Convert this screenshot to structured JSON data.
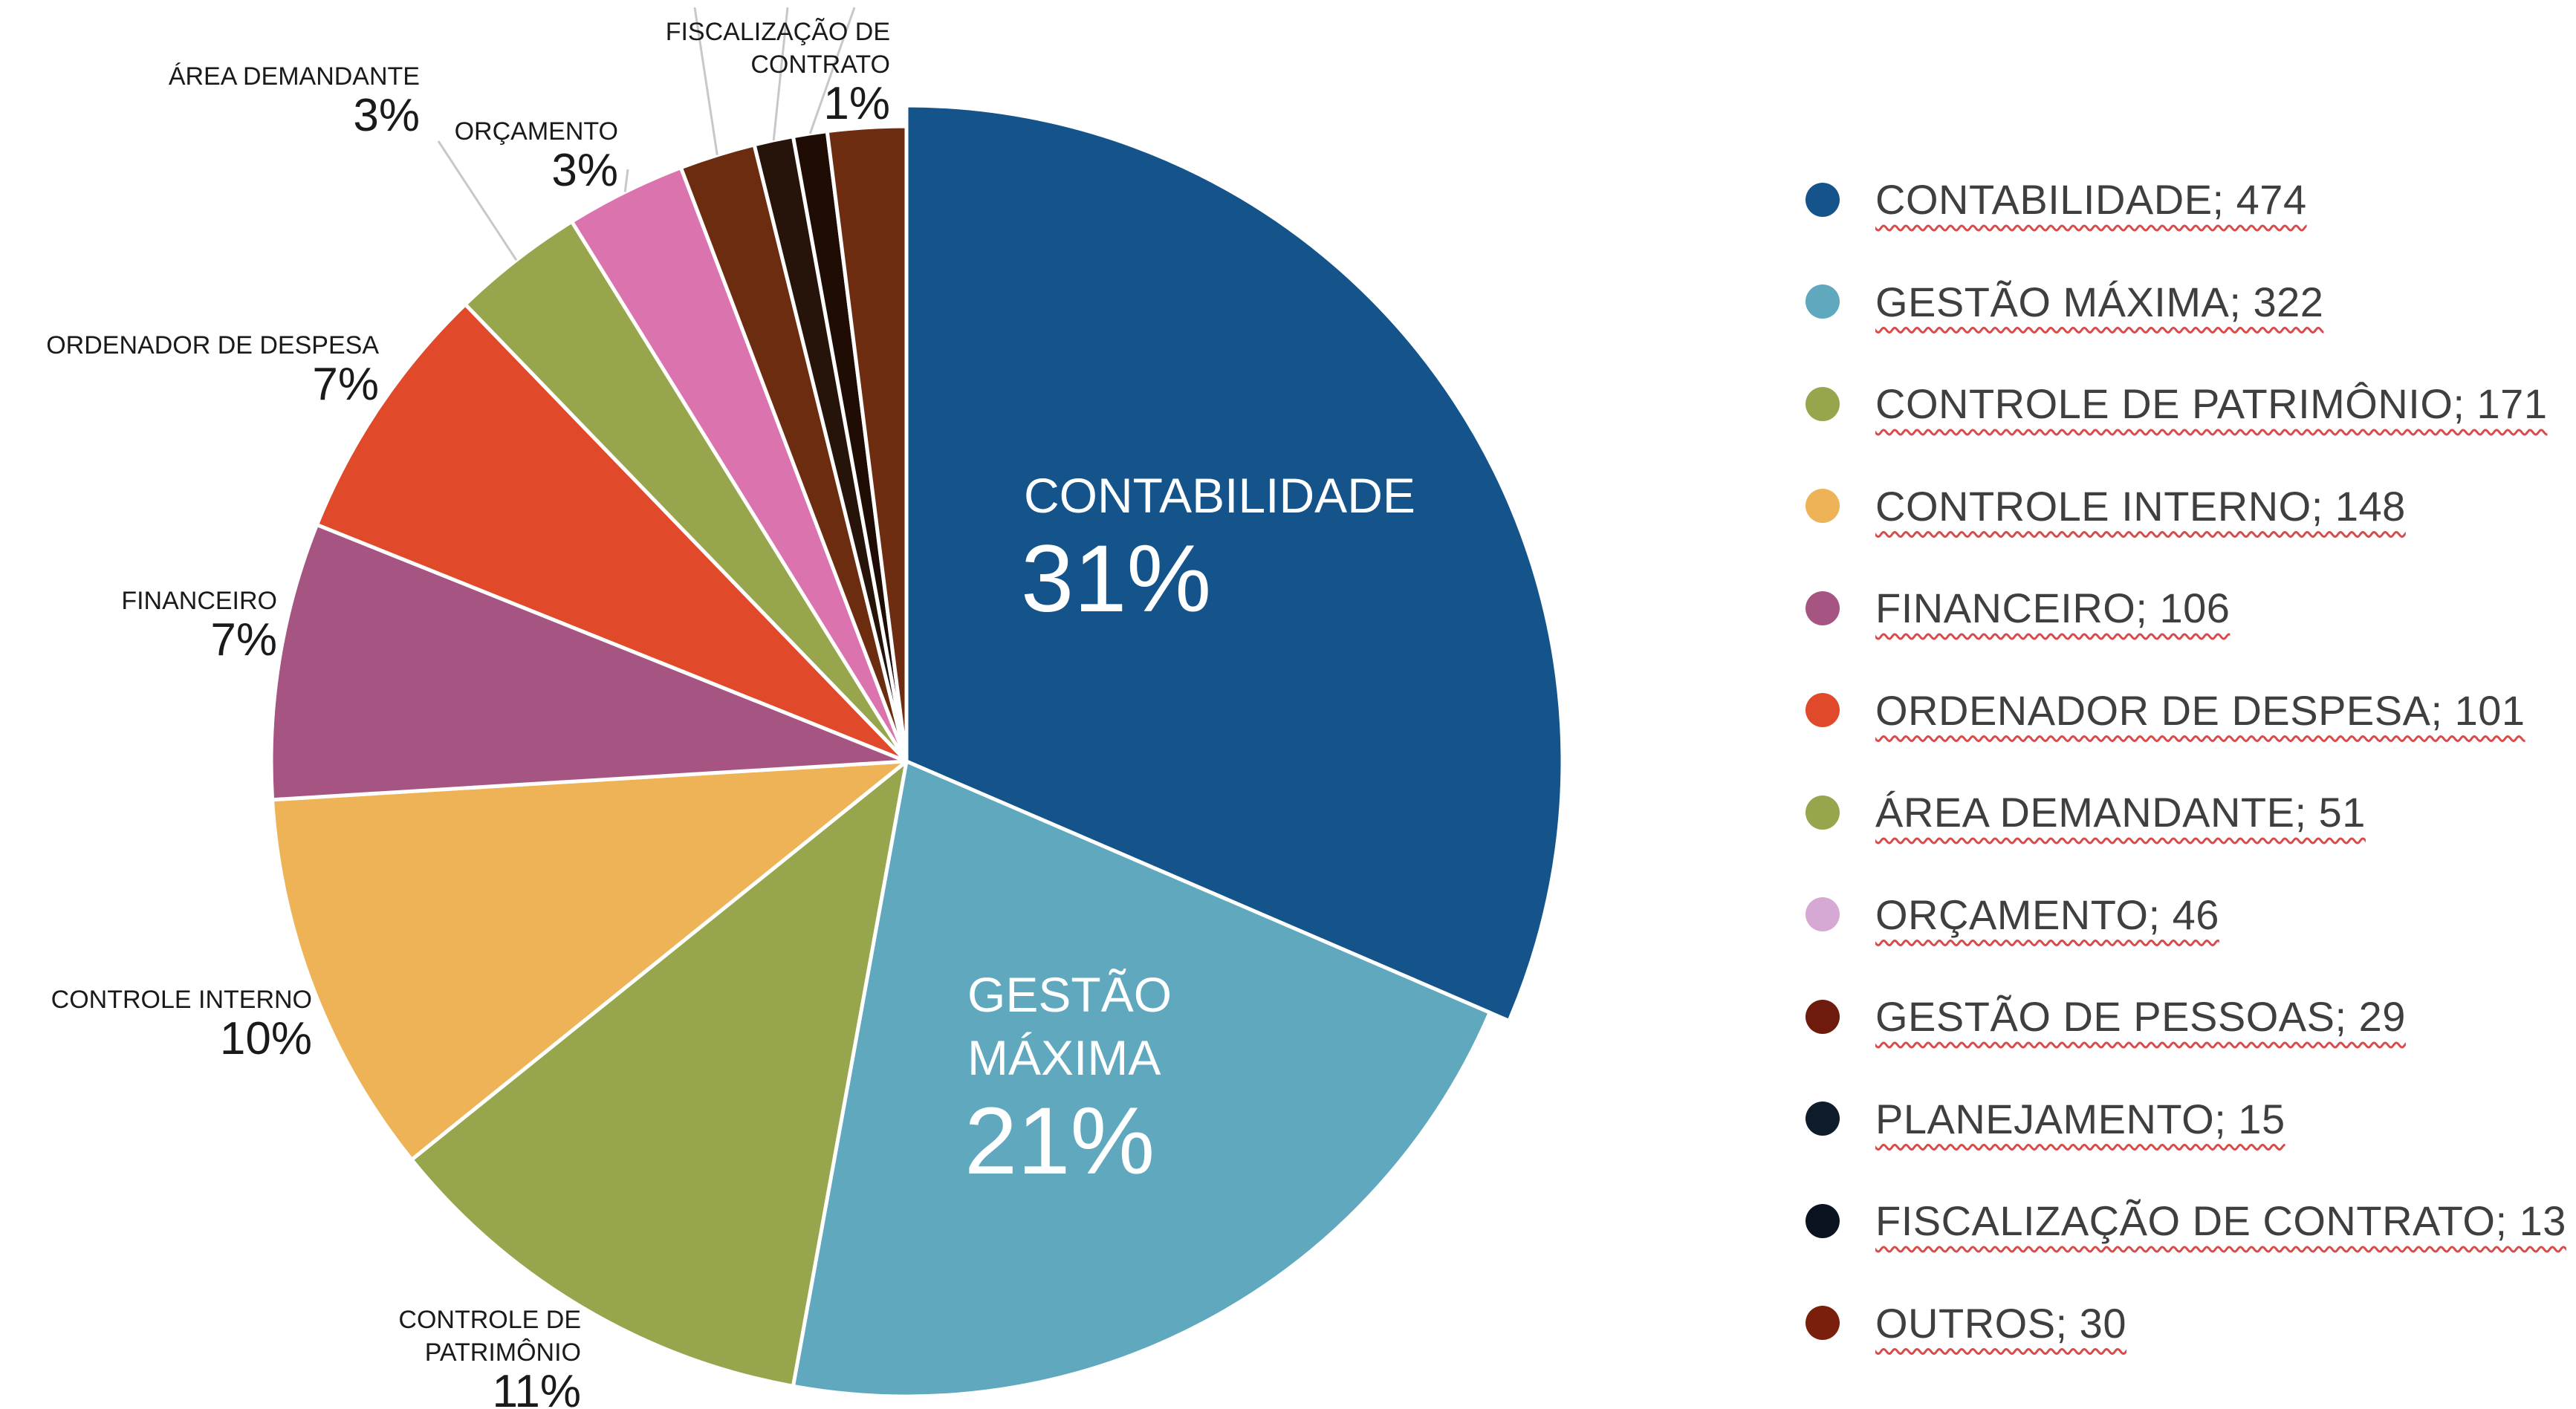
{
  "chart_data": {
    "type": "pie",
    "slices": [
      {
        "label": "CONTABILIDADE",
        "value": 474,
        "percent_label": "31%",
        "color": "#15548b"
      },
      {
        "label": "GESTÃO MÁXIMA",
        "value": 322,
        "percent_label": "21%",
        "color": "#60a8bd"
      },
      {
        "label": "CONTROLE DE PATRIMÔNIO",
        "value": 171,
        "percent_label": "11%",
        "color": "#97a64c"
      },
      {
        "label": "CONTROLE INTERNO",
        "value": 148,
        "percent_label": "10%",
        "color": "#eeb356"
      },
      {
        "label": "FINANCEIRO",
        "value": 106,
        "percent_label": "7%",
        "color": "#a65583"
      },
      {
        "label": "ORDENADOR DE DESPESA",
        "value": 101,
        "percent_label": "7%",
        "color": "#e04a2b"
      },
      {
        "label": "ÁREA DEMANDANTE",
        "value": 51,
        "percent_label": "3%",
        "color": "#97a64c"
      },
      {
        "label": "ORÇAMENTO",
        "value": 46,
        "percent_label": "3%",
        "color": "#db73ae"
      },
      {
        "label": "GESTÃO DE PESSOAS",
        "value": 29,
        "percent_label": "",
        "color": "#6b2c0f"
      },
      {
        "label": "PLANEJAMENTO",
        "value": 15,
        "percent_label": "",
        "color": "#26130a"
      },
      {
        "label": "FISCALIZAÇÃO DE CONTRATO",
        "value": 13,
        "percent_label": "1%",
        "color": "#1f0d05"
      },
      {
        "label": "OUTROS",
        "value": 30,
        "percent_label": "",
        "color": "#6e2c10"
      }
    ],
    "inside_labels": [
      {
        "lines": [
          "CONTABILIDADE"
        ],
        "percent": "31%"
      },
      {
        "lines": [
          "GESTÃO",
          "MÁXIMA"
        ],
        "percent": "21%"
      }
    ],
    "outside_labels": [
      {
        "lines": [
          "CONTROLE DE",
          "PATRIMÔNIO"
        ],
        "percent": "11%"
      },
      {
        "lines": [
          "CONTROLE INTERNO"
        ],
        "percent": "10%"
      },
      {
        "lines": [
          "FINANCEIRO"
        ],
        "percent": "7%"
      },
      {
        "lines": [
          "ORDENADOR DE DESPESA"
        ],
        "percent": "7%"
      },
      {
        "lines": [
          "ÁREA DEMANDANTE"
        ],
        "percent": "3%"
      },
      {
        "lines": [
          "ORÇAMENTO"
        ],
        "percent": "3%"
      },
      {
        "lines": [
          "FISCALIZAÇÃO DE",
          "CONTRATO"
        ],
        "percent": "1%"
      }
    ],
    "legend": {
      "position": "right",
      "items": [
        {
          "text": "CONTABILIDADE; 474",
          "color": "#15548b"
        },
        {
          "text": "GESTÃO MÁXIMA; 322",
          "color": "#60a8bd"
        },
        {
          "text": "CONTROLE DE PATRIMÔNIO; 171",
          "color": "#97a64c"
        },
        {
          "text": "CONTROLE INTERNO; 148",
          "color": "#eeb356"
        },
        {
          "text": "FINANCEIRO; 106",
          "color": "#a65583"
        },
        {
          "text": "ORDENADOR DE DESPESA; 101",
          "color": "#e04a2b"
        },
        {
          "text": "ÁREA DEMANDANTE; 51",
          "color": "#97a64c"
        },
        {
          "text": "ORÇAMENTO; 46",
          "color": "#d6a8d4"
        },
        {
          "text": "GESTÃO DE PESSOAS; 29",
          "color": "#6e1a0c"
        },
        {
          "text": "PLANEJAMENTO; 15",
          "color": "#0d1b2a"
        },
        {
          "text": "FISCALIZAÇÃO DE CONTRATO; 13",
          "color": "#0b1320"
        },
        {
          "text": "OUTROS; 30",
          "color": "#7a1f0c"
        }
      ]
    }
  }
}
